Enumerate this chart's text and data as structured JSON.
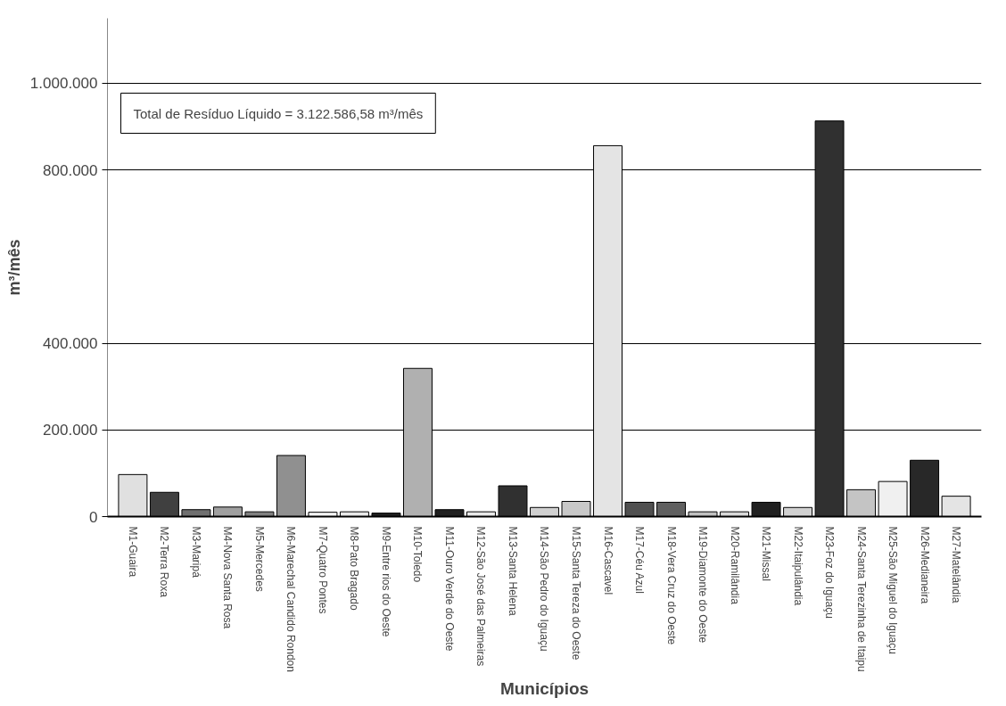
{
  "chart_data": {
    "type": "bar",
    "xlabel": "Municípios",
    "ylabel": "m³/mês",
    "annotations": [
      "Total de Resíduo Líquido = 3.122.586,58 m³/mês"
    ],
    "categories": [
      "M1-Guaira",
      "M2-Terra Roxa",
      "M3-Maripá",
      "M4-Nova Santa Rosa",
      "M5-Mercedes",
      "M6-Marechal Candido Rondon",
      "M7-Quatro Pontes",
      "M8-Pato Bragado",
      "M9-Entre rios do Oeste",
      "M10-Toledo",
      "M11-Ouro Verde do Oeste",
      "M12-São José das Palmeiras",
      "M13-Santa Helena",
      "M14-São Pedro do Iguaçu",
      "M15-Santa Tereza do Oeste",
      "M16-Cascavel",
      "M17-Céu Azul",
      "M18-Vera Cruz do Oeste",
      "M19-Diamonte do Oeste",
      "M20-Ramilândia",
      "M21-Missal",
      "M22-Itaipulândia",
      "M23-Foz do Iguaçu",
      "M24-Santa Terezinha de Itaipu",
      "M25-São Miguel do Iguaçu",
      "M26-Medianeira",
      "M27-Matelândia"
    ],
    "values": [
      97000,
      56000,
      16000,
      22000,
      11000,
      141000,
      10000,
      11000,
      8000,
      342000,
      16000,
      11000,
      71000,
      21000,
      35000,
      856000,
      33000,
      33000,
      11000,
      11000,
      33000,
      21000,
      913000,
      62000,
      81000,
      130000,
      47000
    ],
    "colors": [
      "#e0e0e0",
      "#404040",
      "#707070",
      "#a0a0a0",
      "#808080",
      "#909090",
      "#f4f4f4",
      "#e8e8e8",
      "#202020",
      "#b0b0b0",
      "#202020",
      "#e8e8e8",
      "#303030",
      "#d0d0d0",
      "#c8c8c8",
      "#e4e4e4",
      "#505050",
      "#606060",
      "#c0c0c0",
      "#d8d8d8",
      "#202020",
      "#d0d0d0",
      "#303030",
      "#c4c4c4",
      "#f0f0f0",
      "#282828",
      "#e4e4e4"
    ],
    "ylim": [
      0,
      1150000
    ],
    "yticks": [
      {
        "value": 0,
        "label": "0"
      },
      {
        "value": 200000,
        "label": "200.000"
      },
      {
        "value": 400000,
        "label": "400.000"
      },
      {
        "value": 800000,
        "label": "800.000"
      },
      {
        "value": 1000000,
        "label": "1.000.000"
      }
    ],
    "grid": "y"
  }
}
